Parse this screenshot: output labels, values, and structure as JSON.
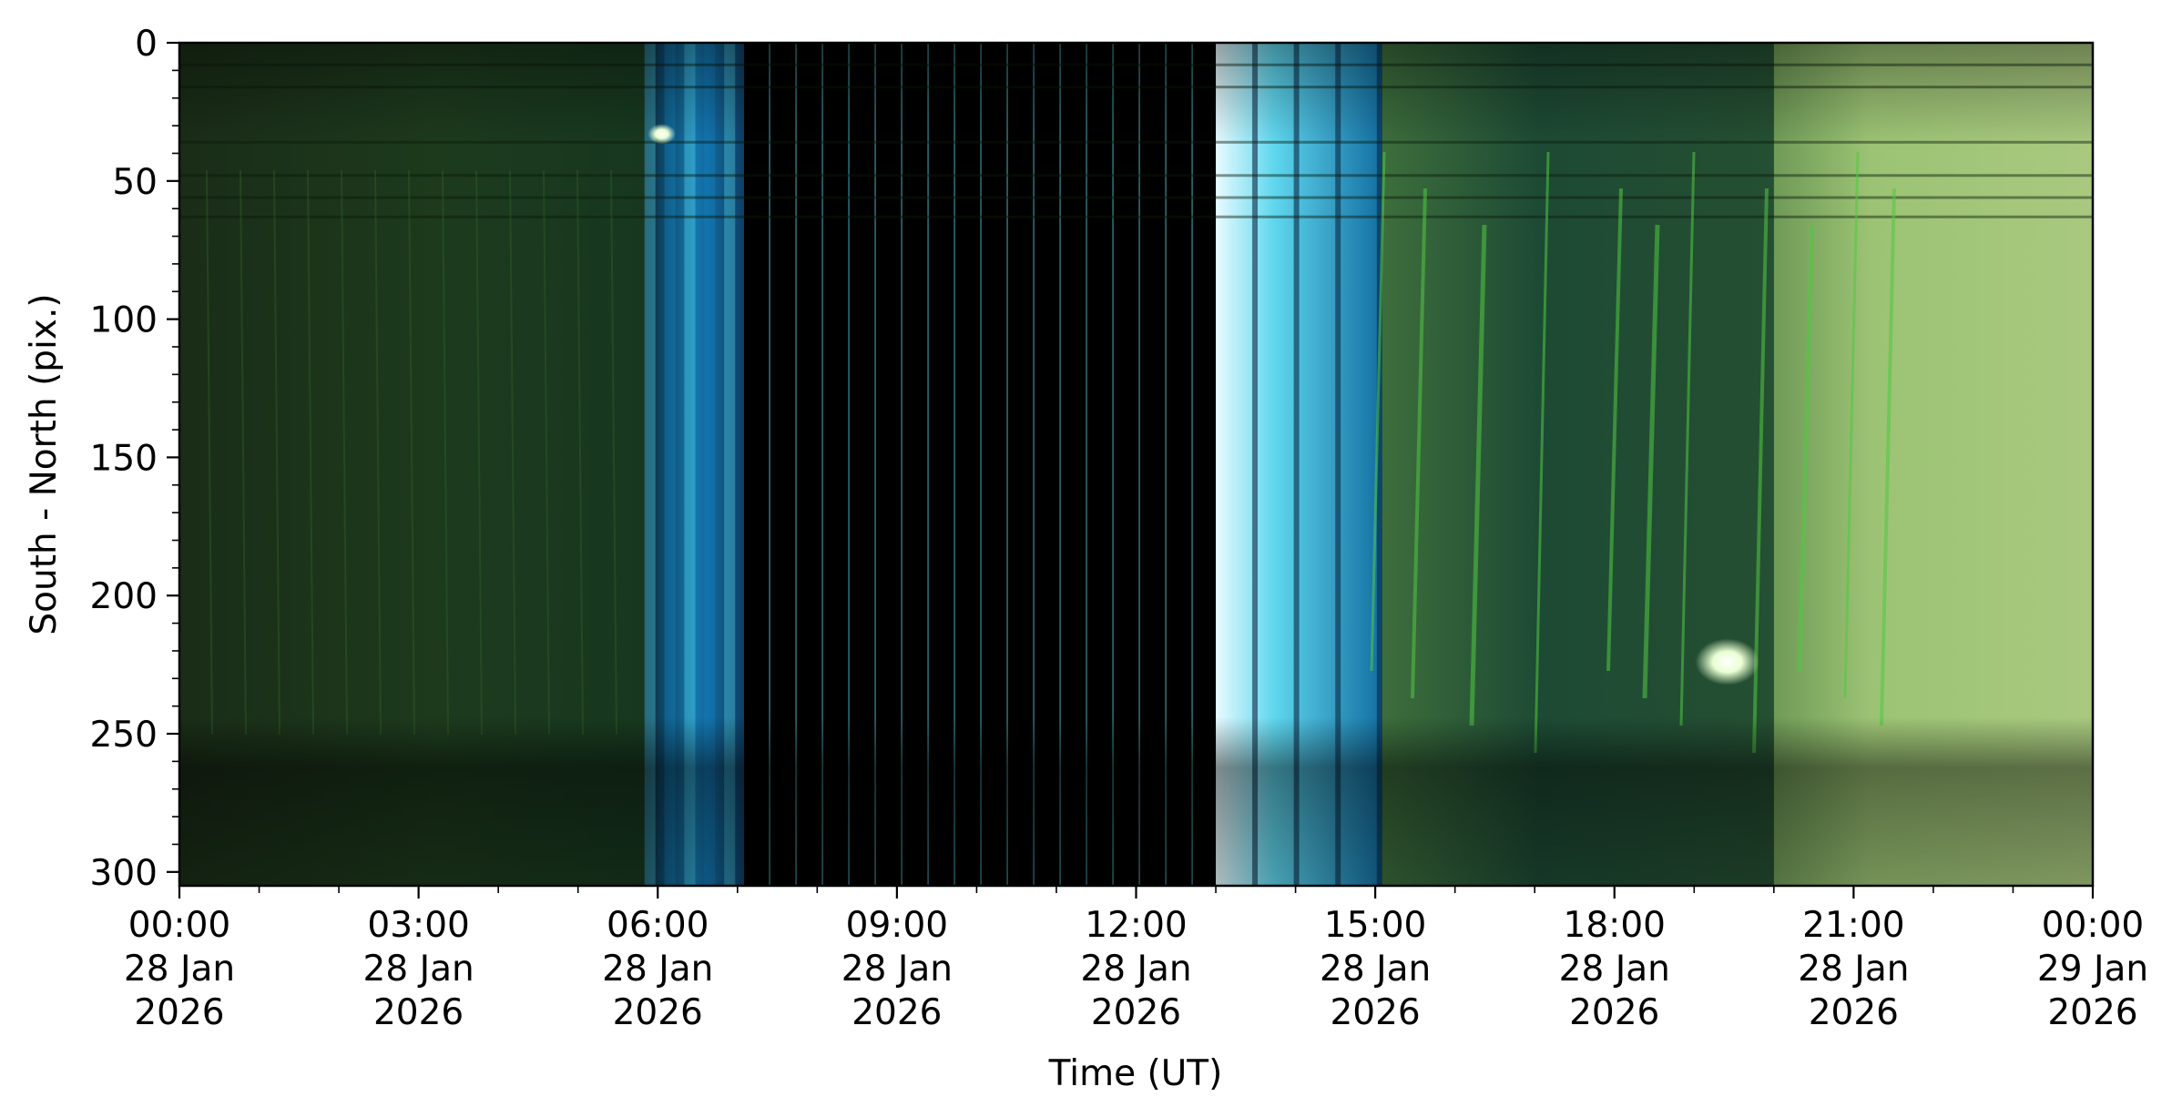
{
  "chart_data": {
    "type": "heatmap",
    "title": "",
    "xlabel": "Time (UT)",
    "ylabel": "South - North (pix.)",
    "x_range": [
      "2026-01-28T00:00",
      "2026-01-29T00:00"
    ],
    "ylim": [
      305,
      0
    ],
    "y_ticks": [
      0,
      50,
      100,
      150,
      200,
      250,
      300
    ],
    "x_ticks": [
      {
        "t": "2026-01-28T00:00",
        "time": "00:00",
        "day": "28 Jan",
        "year": "2026"
      },
      {
        "t": "2026-01-28T03:00",
        "time": "03:00",
        "day": "28 Jan",
        "year": "2026"
      },
      {
        "t": "2026-01-28T06:00",
        "time": "06:00",
        "day": "28 Jan",
        "year": "2026"
      },
      {
        "t": "2026-01-28T09:00",
        "time": "09:00",
        "day": "28 Jan",
        "year": "2026"
      },
      {
        "t": "2026-01-28T12:00",
        "time": "12:00",
        "day": "28 Jan",
        "year": "2026"
      },
      {
        "t": "2026-01-28T15:00",
        "time": "15:00",
        "day": "28 Jan",
        "year": "2026"
      },
      {
        "t": "2026-01-28T18:00",
        "time": "18:00",
        "day": "28 Jan",
        "year": "2026"
      },
      {
        "t": "2026-01-28T21:00",
        "time": "21:00",
        "day": "28 Jan",
        "year": "2026"
      },
      {
        "t": "2026-01-29T00:00",
        "time": "00:00",
        "day": "29 Jan",
        "year": "2026"
      }
    ],
    "x_minor_tick_step_minutes": 60,
    "y_minor_tick_step": 10,
    "grid": false,
    "legend": "none",
    "colors": {
      "night_green": "#1d3a1c",
      "twilight_blue": "#1587c8",
      "twilight_cyan": "#5fe2f2",
      "daylight_black": "#000000",
      "bright_green": "#b8dc85",
      "moon_white": "#f4ffe8"
    },
    "segments": [
      {
        "start": "2026-01-28T00:00",
        "end": "2026-01-28T05:50",
        "kind": "dark green keogram"
      },
      {
        "start": "2026-01-28T05:50",
        "end": "2026-01-28T07:05",
        "kind": "blue twilight bands"
      },
      {
        "start": "2026-01-28T07:05",
        "end": "2026-01-28T13:00",
        "kind": "black with thin cyan lines"
      },
      {
        "start": "2026-01-28T13:00",
        "end": "2026-01-28T15:05",
        "kind": "bright cyan twilight bands"
      },
      {
        "start": "2026-01-28T15:05",
        "end": "2026-01-28T20:00",
        "kind": "green keogram with auroral streaks"
      },
      {
        "start": "2026-01-28T20:00",
        "end": "2026-01-29T00:00",
        "kind": "bright yellow-green keogram"
      }
    ],
    "bright_spots": [
      {
        "t": "2026-01-28T06:03",
        "y": 33
      },
      {
        "t": "2026-01-28T19:25",
        "y": 224
      }
    ]
  }
}
